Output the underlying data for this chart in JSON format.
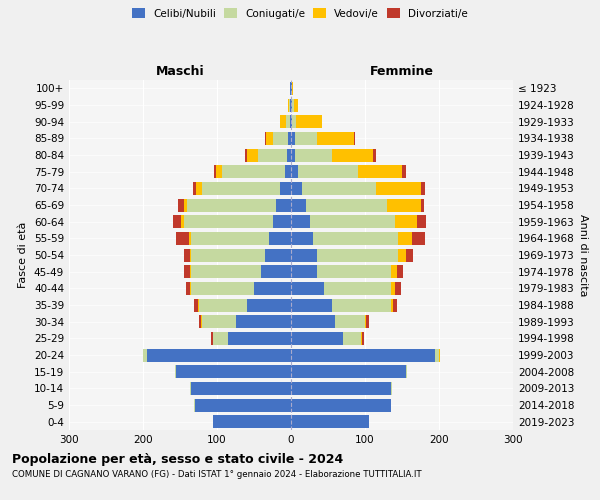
{
  "age_groups": [
    "0-4",
    "5-9",
    "10-14",
    "15-19",
    "20-24",
    "25-29",
    "30-34",
    "35-39",
    "40-44",
    "45-49",
    "50-54",
    "55-59",
    "60-64",
    "65-69",
    "70-74",
    "75-79",
    "80-84",
    "85-89",
    "90-94",
    "95-99",
    "100+"
  ],
  "birth_years": [
    "2019-2023",
    "2014-2018",
    "2009-2013",
    "2004-2008",
    "1999-2003",
    "1994-1998",
    "1989-1993",
    "1984-1988",
    "1979-1983",
    "1974-1978",
    "1969-1973",
    "1964-1968",
    "1959-1963",
    "1954-1958",
    "1949-1953",
    "1944-1948",
    "1939-1943",
    "1934-1938",
    "1929-1933",
    "1924-1928",
    "≤ 1923"
  ],
  "maschi": {
    "celibi": [
      105,
      130,
      135,
      155,
      195,
      85,
      75,
      60,
      50,
      40,
      35,
      30,
      25,
      20,
      15,
      8,
      5,
      4,
      2,
      1,
      1
    ],
    "coniugati": [
      0,
      1,
      1,
      2,
      5,
      20,
      45,
      65,
      85,
      95,
      100,
      105,
      120,
      120,
      105,
      85,
      40,
      20,
      5,
      2,
      1
    ],
    "vedovi": [
      0,
      0,
      0,
      0,
      0,
      1,
      1,
      1,
      1,
      2,
      2,
      3,
      4,
      5,
      8,
      8,
      15,
      10,
      8,
      1,
      0
    ],
    "divorziati": [
      0,
      0,
      0,
      0,
      0,
      2,
      3,
      5,
      6,
      8,
      8,
      18,
      10,
      8,
      5,
      3,
      2,
      1,
      0,
      0,
      0
    ]
  },
  "femmine": {
    "nubili": [
      105,
      135,
      135,
      155,
      195,
      70,
      60,
      55,
      45,
      35,
      35,
      30,
      25,
      20,
      15,
      10,
      6,
      5,
      2,
      1,
      1
    ],
    "coniugate": [
      0,
      0,
      1,
      2,
      5,
      25,
      40,
      80,
      90,
      100,
      110,
      115,
      115,
      110,
      100,
      80,
      50,
      30,
      5,
      3,
      1
    ],
    "vedove": [
      0,
      0,
      0,
      0,
      1,
      1,
      2,
      3,
      5,
      8,
      10,
      18,
      30,
      45,
      60,
      60,
      55,
      50,
      35,
      5,
      1
    ],
    "divorziate": [
      0,
      0,
      0,
      0,
      1,
      2,
      4,
      5,
      8,
      8,
      10,
      18,
      12,
      5,
      6,
      5,
      4,
      2,
      0,
      0,
      0
    ]
  },
  "colors": {
    "celibi_nubili": "#4472c4",
    "coniugati": "#c5d9a0",
    "vedovi": "#ffc000",
    "divorziati": "#c0392b"
  },
  "xlim": 300,
  "title": "Popolazione per età, sesso e stato civile - 2024",
  "subtitle": "COMUNE DI CAGNANO VARANO (FG) - Dati ISTAT 1° gennaio 2024 - Elaborazione TUTTITALIA.IT",
  "ylabel_left": "Fasce di età",
  "ylabel_right": "Anni di nascita",
  "xlabel_maschi": "Maschi",
  "xlabel_femmine": "Femmine",
  "bg_color": "#f0f0f0",
  "plot_bg": "#f5f5f5"
}
